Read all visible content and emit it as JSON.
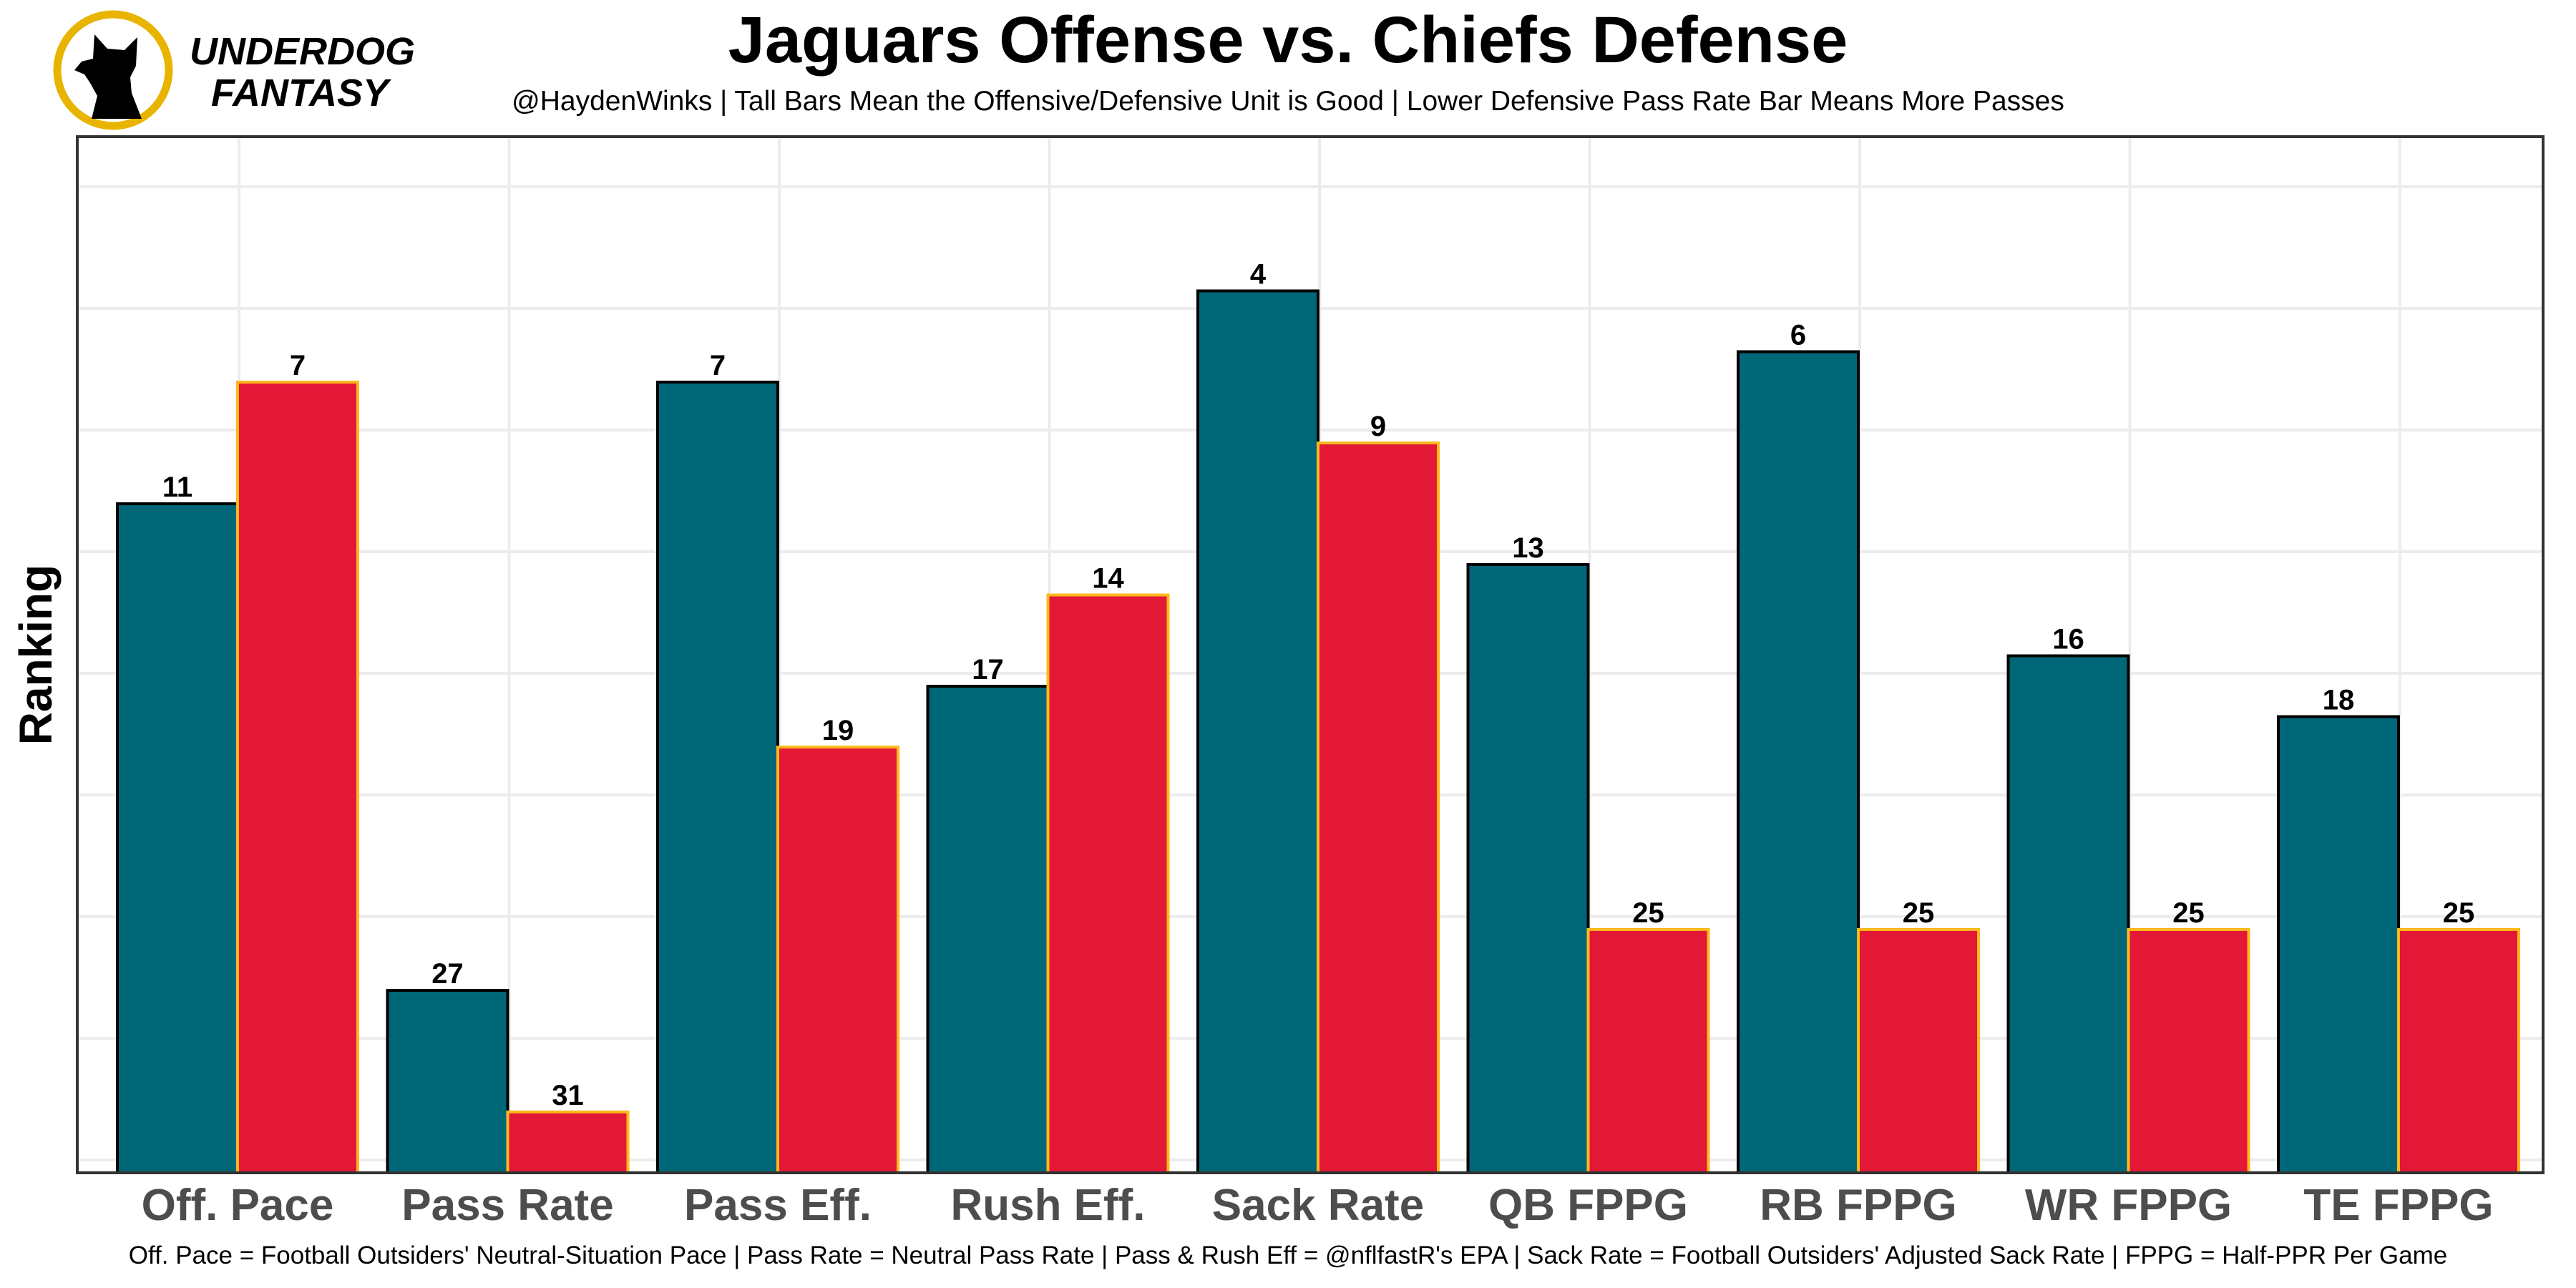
{
  "brand": {
    "line1": "UNDERDOG",
    "line2": "FANTASY",
    "ring_color": "#e8b400"
  },
  "chart_data": {
    "type": "bar",
    "title": "Jaguars Offense vs. Chiefs Defense",
    "subtitle": "@HaydenWinks | Tall Bars Mean the Offensive/Defensive Unit is Good | Lower Defensive Pass Rate Bar Means More Passes",
    "caption": "Off. Pace = Football Outsiders' Neutral-Situation Pace | Pass Rate = Neutral Pass Rate | Pass & Rush Eff = @nflfastR's EPA | Sack Rate = Football Outsiders' Adjusted Sack Rate | FPPG = Half-PPR Per Game",
    "xlabel": "",
    "ylabel": "Ranking",
    "y_scale": "rank, 1 best (top), 32 worst (bottom)",
    "categories": [
      "Off. Pace",
      "Pass Rate",
      "Pass Eff.",
      "Rush Eff.",
      "Sack Rate",
      "QB FPPG",
      "RB FPPG",
      "WR FPPG",
      "TE FPPG"
    ],
    "series": [
      {
        "name": "Jaguars Offense",
        "color": "#006778",
        "edge": "#000000",
        "values": [
          11,
          27,
          7,
          17,
          4,
          13,
          6,
          16,
          18
        ]
      },
      {
        "name": "Chiefs Defense",
        "color": "#e31837",
        "edge": "#ffb81c",
        "values": [
          7,
          31,
          19,
          14,
          9,
          25,
          25,
          25,
          25
        ]
      }
    ],
    "grid": true
  }
}
